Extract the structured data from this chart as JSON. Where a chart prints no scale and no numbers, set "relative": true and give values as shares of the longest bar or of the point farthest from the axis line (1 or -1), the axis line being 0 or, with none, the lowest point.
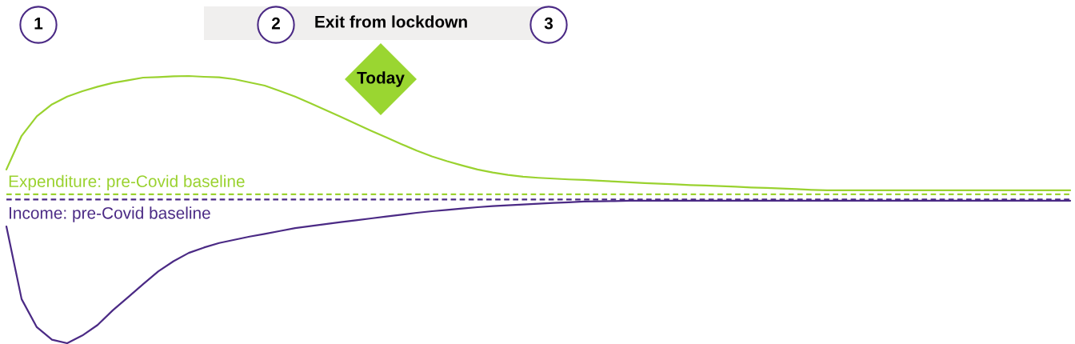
{
  "chart_data": {
    "type": "line",
    "relative": true,
    "line_style": "solid",
    "categories": [
      null,
      null,
      null,
      null,
      null,
      null,
      null,
      null,
      null,
      null,
      null,
      null,
      null,
      null,
      null,
      null,
      null,
      null,
      null,
      null,
      null,
      null,
      null,
      null,
      null,
      null,
      null,
      null,
      null,
      null,
      null,
      null,
      null,
      null,
      null,
      null,
      null,
      null,
      null,
      null,
      null,
      null,
      null,
      null,
      null,
      null,
      null,
      null,
      null,
      null,
      null,
      null,
      null,
      null,
      null,
      null,
      null,
      null,
      null,
      null,
      null,
      null,
      null,
      null,
      null,
      null,
      null,
      null,
      null,
      null,
      null
    ],
    "series": [
      {
        "color": "#9ad22f",
        "values": [
          0.65,
          0.776,
          0.849,
          0.894,
          0.923,
          0.943,
          0.96,
          0.974,
          0.984,
          0.994,
          0.996,
          0.999,
          1.0,
          0.997,
          0.995,
          0.988,
          0.976,
          0.964,
          0.944,
          0.923,
          0.898,
          0.873,
          0.847,
          0.821,
          0.795,
          0.77,
          0.745,
          0.721,
          0.699,
          0.681,
          0.665,
          0.65,
          0.639,
          0.63,
          0.623,
          0.619,
          0.616,
          0.613,
          0.611,
          0.608,
          0.605,
          0.602,
          0.599,
          0.597,
          0.595,
          0.592,
          0.59,
          0.588,
          0.586,
          0.583,
          0.581,
          0.579,
          0.577,
          0.574,
          0.572,
          0.572,
          0.572,
          0.572,
          0.572,
          0.572,
          0.572,
          0.572,
          0.572,
          0.572,
          0.572,
          0.572,
          0.572,
          0.572,
          0.572,
          0.572,
          0.572
        ]
      },
      {
        "color": "#4b2a85",
        "values": [
          0.437,
          0.165,
          0.06,
          0.013,
          0.0,
          0.029,
          0.068,
          0.123,
          0.172,
          0.221,
          0.269,
          0.307,
          0.338,
          0.358,
          0.375,
          0.387,
          0.399,
          0.409,
          0.42,
          0.431,
          0.438,
          0.446,
          0.453,
          0.46,
          0.467,
          0.474,
          0.481,
          0.488,
          0.494,
          0.499,
          0.504,
          0.509,
          0.513,
          0.516,
          0.519,
          0.522,
          0.525,
          0.527,
          0.53,
          0.531,
          0.532,
          0.533,
          0.533,
          0.533,
          0.533,
          0.533,
          0.533,
          0.533,
          0.533,
          0.533,
          0.533,
          0.533,
          0.533,
          0.533,
          0.533,
          0.533,
          0.533,
          0.533,
          0.533,
          0.533,
          0.533,
          0.533,
          0.533,
          0.533,
          0.533,
          0.533,
          0.533,
          0.533,
          0.533,
          0.533,
          0.533
        ]
      }
    ],
    "ref_lines": [
      {
        "axis": "y",
        "value": 0.557,
        "label": "Expenditure: pre-Covid baseline",
        "color": "#9ad22f",
        "line_style": "dashed"
      },
      {
        "axis": "y",
        "value": 0.538,
        "label": "Income: pre-Covid baseline",
        "color": "#4b2a85",
        "line_style": "dashed"
      }
    ],
    "annotations": [
      "1",
      "2",
      "Exit from lockdown",
      "3",
      "Today"
    ]
  }
}
